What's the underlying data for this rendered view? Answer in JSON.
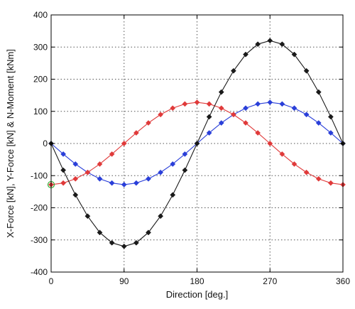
{
  "chart_data": {
    "type": "line",
    "xlabel": "Direction [deg.]",
    "ylabel": "X-Force [kN], Y-Force [kN] & N-Moment [kNm]",
    "xlim": [
      0,
      360
    ],
    "ylim": [
      -400,
      400
    ],
    "x_ticks": [
      0,
      90,
      180,
      270,
      360
    ],
    "y_ticks": [
      -400,
      -300,
      -200,
      -100,
      0,
      100,
      200,
      300,
      400
    ],
    "grid": true,
    "marker": "diamond",
    "x": [
      0,
      15,
      30,
      45,
      60,
      75,
      90,
      105,
      120,
      135,
      150,
      165,
      180,
      195,
      210,
      225,
      240,
      255,
      270,
      285,
      300,
      315,
      330,
      345,
      360
    ],
    "series": [
      {
        "color": "#2a3fd9",
        "values": [
          0,
          -33,
          -64,
          -90,
          -110,
          -123,
          -128,
          -123,
          -110,
          -90,
          -64,
          -33,
          0,
          33,
          64,
          90,
          110,
          123,
          128,
          123,
          110,
          90,
          64,
          33,
          0
        ]
      },
      {
        "color": "#e03a3a",
        "values": [
          -128,
          -123,
          -110,
          -90,
          -64,
          -33,
          0,
          33,
          64,
          90,
          110,
          123,
          128,
          123,
          110,
          90,
          64,
          33,
          0,
          -33,
          -64,
          -90,
          -110,
          -123,
          -128
        ]
      },
      {
        "color": "#1a1a1a",
        "values": [
          0,
          -83,
          -160,
          -226,
          -277,
          -309,
          -320,
          -309,
          -277,
          -226,
          -160,
          -83,
          0,
          83,
          160,
          226,
          277,
          309,
          320,
          309,
          277,
          226,
          160,
          83,
          0
        ]
      }
    ],
    "highlight_point": {
      "x": 0,
      "y": -128,
      "color": "#33aa33"
    }
  }
}
